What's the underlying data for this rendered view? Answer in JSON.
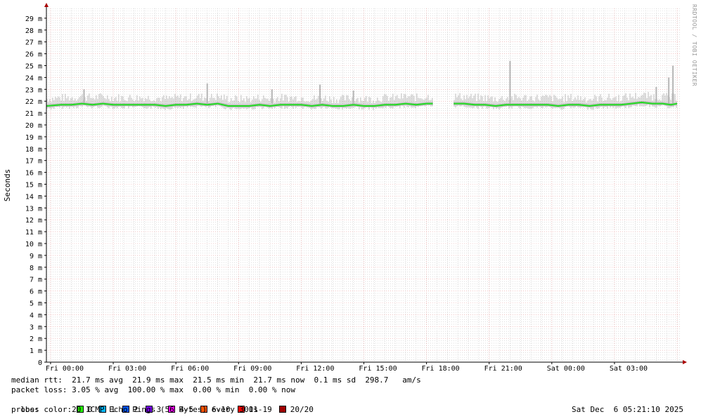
{
  "chart_data": {
    "type": "line",
    "ylabel": "Seconds",
    "xlabel": "",
    "ylim": [
      0,
      29.8
    ],
    "y_tick_labels": [
      "0",
      "1 m",
      "2 m",
      "3 m",
      "4 m",
      "5 m",
      "6 m",
      "7 m",
      "8 m",
      "9 m",
      "10 m",
      "11 m",
      "12 m",
      "13 m",
      "14 m",
      "15 m",
      "16 m",
      "17 m",
      "18 m",
      "19 m",
      "20 m",
      "21 m",
      "22 m",
      "23 m",
      "24 m",
      "25 m",
      "26 m",
      "27 m",
      "28 m",
      "29 m"
    ],
    "x_tick_labels": [
      "Fri 00:00",
      "Fri 03:00",
      "Fri 06:00",
      "Fri 09:00",
      "Fri 12:00",
      "Fri 15:00",
      "Fri 18:00",
      "Fri 21:00",
      "Sat 00:00",
      "Sat 03:00"
    ],
    "x_hours_range": [
      -0.2,
      30.2
    ],
    "grid": true,
    "series": [
      {
        "name": "median rtt",
        "color": "#22dd22",
        "segments": [
          {
            "x": [
              -0.2,
              0.5,
              1.0,
              1.5,
              2.0,
              2.5,
              3.0,
              3.5,
              4.0,
              4.5,
              5.0,
              5.5,
              6.0,
              6.5,
              7.0,
              7.5,
              8.0,
              8.5,
              9.0,
              9.5,
              10.0,
              10.5,
              11.0,
              11.5,
              12.0,
              12.5,
              13.0,
              13.5,
              14.0,
              14.5,
              15.0,
              15.5,
              16.0,
              16.5,
              17.0,
              17.5,
              18.0,
              18.3
            ],
            "y": [
              21.6,
              21.7,
              21.7,
              21.8,
              21.7,
              21.8,
              21.7,
              21.7,
              21.7,
              21.7,
              21.7,
              21.6,
              21.7,
              21.7,
              21.8,
              21.7,
              21.8,
              21.6,
              21.6,
              21.6,
              21.7,
              21.6,
              21.7,
              21.7,
              21.7,
              21.6,
              21.7,
              21.6,
              21.6,
              21.7,
              21.6,
              21.6,
              21.7,
              21.7,
              21.8,
              21.7,
              21.8,
              21.8
            ]
          },
          {
            "x": [
              19.3,
              19.8,
              20.3,
              20.8,
              21.3,
              21.8,
              22.3,
              22.8,
              23.3,
              23.8,
              24.3,
              24.8,
              25.3,
              25.8,
              26.3,
              26.8,
              27.3,
              27.8,
              28.3,
              28.8,
              29.3,
              29.7,
              30.0
            ],
            "y": [
              21.8,
              21.8,
              21.7,
              21.7,
              21.6,
              21.7,
              21.7,
              21.7,
              21.7,
              21.7,
              21.6,
              21.7,
              21.7,
              21.6,
              21.7,
              21.7,
              21.7,
              21.8,
              21.9,
              21.8,
              21.8,
              21.7,
              21.8
            ]
          }
        ]
      }
    ],
    "smoke_spikes": [
      {
        "x": 1.6,
        "y": 23.0
      },
      {
        "x": 7.5,
        "y": 23.5
      },
      {
        "x": 10.6,
        "y": 23.0
      },
      {
        "x": 12.9,
        "y": 23.4
      },
      {
        "x": 14.5,
        "y": 22.9
      },
      {
        "x": 22.0,
        "y": 25.4
      },
      {
        "x": 29.0,
        "y": 23.2
      },
      {
        "x": 29.6,
        "y": 24.0
      },
      {
        "x": 29.8,
        "y": 25.0
      }
    ],
    "colors": {
      "axis": "#000000",
      "arrow": "#aa0000",
      "major_grid": "#e59a9a",
      "minor_grid": "#c8c8c8",
      "smoke": "#b4b4b4",
      "median": "#22dd22"
    }
  },
  "legend": {
    "median_rtt": "median rtt:  21.7 ms avg  21.9 ms max  21.5 ms min  21.7 ms now  0.1 ms sd  298.7   am/s",
    "packet_loss": "packet loss: 3.05 % avg  100.00 % max  0.00 % min  0.00 % now",
    "loss_color_label": "loss color: ",
    "loss_colors": [
      {
        "label": "0",
        "color": "#26ff00"
      },
      {
        "label": "1",
        "color": "#00b8ff"
      },
      {
        "label": "2",
        "color": "#0059ff"
      },
      {
        "label": "3",
        "color": "#7e00ff"
      },
      {
        "label": "4-5",
        "color": "#ff00ff"
      },
      {
        "label": "6-10",
        "color": "#ff5500"
      },
      {
        "label": "11-19",
        "color": "#ff0000"
      },
      {
        "label": "20/20",
        "color": "#a10000"
      }
    ],
    "probe": "probe:       20 ICMP Echo Pings (56 Bytes) every 300s",
    "timestamp": "Sat Dec  6 05:21:10 2025"
  },
  "watermark": "RRDTOOL / TOBI OETIKER"
}
